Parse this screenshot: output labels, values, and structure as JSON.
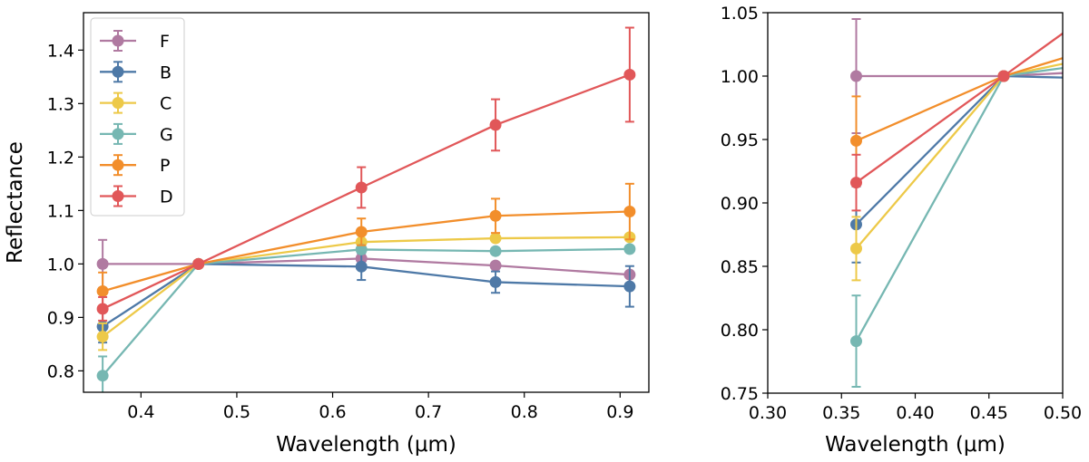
{
  "chart_data": [
    {
      "type": "line",
      "panel": "left",
      "xlabel": "Wavelength (μm)",
      "ylabel": "Reflectance",
      "xlim": [
        0.34,
        0.93
      ],
      "ylim": [
        0.76,
        1.47
      ],
      "xticks": [
        0.4,
        0.5,
        0.6,
        0.7,
        0.8,
        0.9
      ],
      "xtick_labels": [
        "0.4",
        "0.5",
        "0.6",
        "0.7",
        "0.8",
        "0.9"
      ],
      "yticks": [
        0.8,
        0.9,
        1.0,
        1.1,
        1.2,
        1.3,
        1.4
      ],
      "ytick_labels": [
        "0.8",
        "0.9",
        "1.0",
        "1.1",
        "1.2",
        "1.3",
        "1.4"
      ],
      "grid": false,
      "legend": "top-left",
      "x": [
        0.36,
        0.46,
        0.63,
        0.77,
        0.91
      ],
      "series": [
        {
          "name": "F",
          "color": "#b07aa1",
          "values": [
            1.0,
            1.0,
            1.01,
            0.997,
            0.98
          ],
          "errors": [
            0.045,
            0.0,
            0.0,
            0.0,
            0.0
          ]
        },
        {
          "name": "B",
          "color": "#4e79a7",
          "values": [
            0.883,
            1.0,
            0.995,
            0.966,
            0.958
          ],
          "errors": [
            0.03,
            0.0,
            0.025,
            0.02,
            0.038
          ]
        },
        {
          "name": "C",
          "color": "#edc948",
          "values": [
            0.864,
            1.0,
            1.041,
            1.048,
            1.05
          ],
          "errors": [
            0.025,
            0.0,
            0.0,
            0.0,
            0.0
          ]
        },
        {
          "name": "G",
          "color": "#76b7b2",
          "values": [
            0.791,
            1.0,
            1.027,
            1.024,
            1.028
          ],
          "errors": [
            0.036,
            0.0,
            0.0,
            0.0,
            0.0
          ]
        },
        {
          "name": "P",
          "color": "#f28e2b",
          "values": [
            0.949,
            1.0,
            1.06,
            1.09,
            1.098
          ],
          "errors": [
            0.035,
            0.0,
            0.025,
            0.032,
            0.052
          ]
        },
        {
          "name": "D",
          "color": "#e15759",
          "values": [
            0.916,
            1.0,
            1.143,
            1.26,
            1.354
          ],
          "errors": [
            0.022,
            0.0,
            0.038,
            0.048,
            0.088
          ]
        }
      ]
    },
    {
      "type": "line",
      "panel": "right",
      "xlabel": "Wavelength (μm)",
      "ylabel": "",
      "xlim": [
        0.3,
        0.5
      ],
      "ylim": [
        0.75,
        1.05
      ],
      "xticks": [
        0.3,
        0.35,
        0.4,
        0.45,
        0.5
      ],
      "xtick_labels": [
        "0.30",
        "0.35",
        "0.40",
        "0.45",
        "0.50"
      ],
      "yticks": [
        0.75,
        0.8,
        0.85,
        0.9,
        0.95,
        1.0,
        1.05
      ],
      "ytick_labels": [
        "0.75",
        "0.80",
        "0.85",
        "0.90",
        "0.95",
        "1.00",
        "1.05"
      ],
      "grid": false,
      "x": [
        0.36,
        0.46,
        0.63
      ],
      "series": [
        {
          "name": "F",
          "color": "#b07aa1",
          "values": [
            1.0,
            1.0,
            1.01
          ],
          "errors": [
            0.045,
            0.0,
            0.0
          ]
        },
        {
          "name": "B",
          "color": "#4e79a7",
          "values": [
            0.883,
            1.0,
            0.995
          ],
          "errors": [
            0.03,
            0.0,
            0.0
          ]
        },
        {
          "name": "C",
          "color": "#edc948",
          "values": [
            0.864,
            1.0,
            1.041
          ],
          "errors": [
            0.025,
            0.0,
            0.0
          ]
        },
        {
          "name": "G",
          "color": "#76b7b2",
          "values": [
            0.791,
            1.0,
            1.027
          ],
          "errors": [
            0.036,
            0.0,
            0.0
          ]
        },
        {
          "name": "P",
          "color": "#f28e2b",
          "values": [
            0.949,
            1.0,
            1.06
          ],
          "errors": [
            0.035,
            0.0,
            0.0
          ]
        },
        {
          "name": "D",
          "color": "#e15759",
          "values": [
            0.916,
            1.0,
            1.143
          ],
          "errors": [
            0.022,
            0.0,
            0.0
          ]
        }
      ]
    }
  ]
}
